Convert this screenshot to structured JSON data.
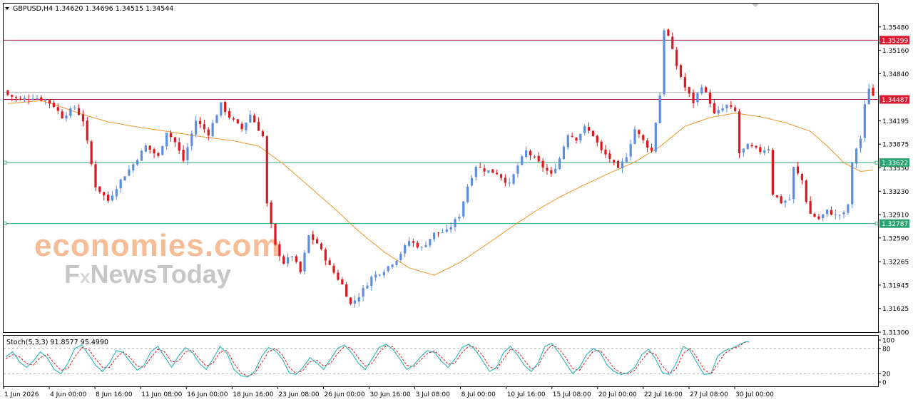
{
  "header": {
    "symbol_line": "GBPUSD,H4  1.34620 1.34696 1.34515 1.34544"
  },
  "watermark": {
    "line1": "economies.com",
    "line2_a": "F",
    "line2_b": "x",
    "line2_c": "NewsToday"
  },
  "colors": {
    "bull": "#5b8de0",
    "bear": "#e0161e",
    "ma": "#f0952a",
    "resistance": "#a51d4a",
    "support": "#2aa370",
    "stoch_main": "#2bb6b6",
    "stoch_signal": "#e0161e",
    "watermark_orange": "#f4b183",
    "watermark_gray": "#bdbdbd"
  },
  "chart_data": [
    {
      "type": "candlestick",
      "title": "GBPUSD,H4",
      "ohlc_last": {
        "open": 1.3462,
        "high": 1.34696,
        "low": 1.34515,
        "close": 1.34544
      },
      "ylim": [
        1.313,
        1.358
      ],
      "y_ticks": [
        "1.35480",
        "1.35160",
        "1.34840",
        "1.34195",
        "1.33875",
        "1.33550",
        "1.33230",
        "1.32910",
        "1.32590",
        "1.32265",
        "1.31945",
        "1.31625",
        "1.31300"
      ],
      "x_ticks": [
        "1 Jun 2026",
        "4 Jun 00:00",
        "8 Jun 16:00",
        "11 Jun 08:00",
        "16 Jun 00:00",
        "18 Jun 16:00",
        "23 Jun 08:00",
        "26 Jun 00:00",
        "30 Jun 16:00",
        "3 Jul 08:00",
        "8 Jul 00:00",
        "10 Jul 16:00",
        "15 Jul 08:00",
        "20 Jul 00:00",
        "22 Jul 16:00",
        "27 Jul 08:00",
        "30 Jul 00:00"
      ],
      "levels": [
        {
          "value": 1.35299,
          "label": "1.35299",
          "kind": "resistance"
        },
        {
          "value": 1.34487,
          "label": "1.34487",
          "kind": "resistance"
        },
        {
          "value": 1.33622,
          "label": "1.33622",
          "kind": "support"
        },
        {
          "value": 1.32787,
          "label": "1.32787",
          "kind": "support"
        }
      ],
      "current_price": 1.34544,
      "price_path": [
        [
          0,
          1.3455
        ],
        [
          3,
          1.3448
        ],
        [
          6,
          1.3452
        ],
        [
          9,
          1.3448
        ],
        [
          11,
          1.344
        ],
        [
          13,
          1.3425
        ],
        [
          16,
          1.3438
        ],
        [
          18,
          1.342
        ],
        [
          21,
          1.333
        ],
        [
          24,
          1.331
        ],
        [
          27,
          1.3338
        ],
        [
          30,
          1.336
        ],
        [
          33,
          1.3385
        ],
        [
          36,
          1.337
        ],
        [
          38,
          1.3405
        ],
        [
          40,
          1.339
        ],
        [
          42,
          1.3365
        ],
        [
          45,
          1.342
        ],
        [
          48,
          1.3402
        ],
        [
          51,
          1.3442
        ],
        [
          53,
          1.3425
        ],
        [
          56,
          1.3408
        ],
        [
          58,
          1.3428
        ],
        [
          61,
          1.3398
        ],
        [
          62,
          1.3305
        ],
        [
          64,
          1.3248
        ],
        [
          66,
          1.3225
        ],
        [
          68,
          1.3235
        ],
        [
          70,
          1.3212
        ],
        [
          72,
          1.3262
        ],
        [
          74,
          1.3252
        ],
        [
          77,
          1.322
        ],
        [
          80,
          1.3195
        ],
        [
          82,
          1.3168
        ],
        [
          84,
          1.318
        ],
        [
          87,
          1.3205
        ],
        [
          90,
          1.3215
        ],
        [
          93,
          1.323
        ],
        [
          96,
          1.3255
        ],
        [
          99,
          1.3245
        ],
        [
          102,
          1.3265
        ],
        [
          105,
          1.3268
        ],
        [
          108,
          1.329
        ],
        [
          110,
          1.333
        ],
        [
          112,
          1.3358
        ],
        [
          114,
          1.3352
        ],
        [
          117,
          1.3348
        ],
        [
          120,
          1.3332
        ],
        [
          122,
          1.3358
        ],
        [
          124,
          1.3378
        ],
        [
          127,
          1.3362
        ],
        [
          130,
          1.3345
        ],
        [
          132,
          1.3368
        ],
        [
          134,
          1.3402
        ],
        [
          136,
          1.3395
        ],
        [
          138,
          1.341
        ],
        [
          140,
          1.34
        ],
        [
          142,
          1.3378
        ],
        [
          144,
          1.3368
        ],
        [
          146,
          1.3352
        ],
        [
          148,
          1.3372
        ],
        [
          150,
          1.3408
        ],
        [
          152,
          1.3392
        ],
        [
          154,
          1.3378
        ],
        [
          155,
          1.3418
        ],
        [
          156,
          1.3455
        ],
        [
          157,
          1.3545
        ],
        [
          158,
          1.3535
        ],
        [
          160,
          1.3495
        ],
        [
          162,
          1.3465
        ],
        [
          164,
          1.3445
        ],
        [
          166,
          1.3468
        ],
        [
          168,
          1.3445
        ],
        [
          169,
          1.3428
        ],
        [
          172,
          1.344
        ],
        [
          174,
          1.3432
        ],
        [
          175,
          1.3375
        ],
        [
          177,
          1.3385
        ],
        [
          180,
          1.3378
        ],
        [
          182,
          1.3382
        ],
        [
          183,
          1.332
        ],
        [
          185,
          1.3308
        ],
        [
          187,
          1.3312
        ],
        [
          188,
          1.3355
        ],
        [
          190,
          1.3338
        ],
        [
          191,
          1.331
        ],
        [
          192,
          1.3292
        ],
        [
          194,
          1.3285
        ],
        [
          196,
          1.3296
        ],
        [
          198,
          1.329
        ],
        [
          200,
          1.3292
        ],
        [
          201,
          1.3305
        ],
        [
          202,
          1.336
        ],
        [
          203,
          1.3382
        ],
        [
          204,
          1.3395
        ],
        [
          205,
          1.344
        ],
        [
          206,
          1.3465
        ],
        [
          207,
          1.3454
        ]
      ],
      "ma_path": [
        [
          0,
          1.3443
        ],
        [
          8,
          1.3447
        ],
        [
          12,
          1.344
        ],
        [
          18,
          1.3428
        ],
        [
          24,
          1.3418
        ],
        [
          30,
          1.3412
        ],
        [
          38,
          1.3405
        ],
        [
          46,
          1.3398
        ],
        [
          54,
          1.3392
        ],
        [
          60,
          1.3385
        ],
        [
          66,
          1.336
        ],
        [
          72,
          1.333
        ],
        [
          78,
          1.33
        ],
        [
          84,
          1.3268
        ],
        [
          90,
          1.324
        ],
        [
          96,
          1.3218
        ],
        [
          102,
          1.3208
        ],
        [
          108,
          1.3225
        ],
        [
          114,
          1.3248
        ],
        [
          120,
          1.3272
        ],
        [
          126,
          1.3295
        ],
        [
          132,
          1.3315
        ],
        [
          138,
          1.3332
        ],
        [
          144,
          1.3348
        ],
        [
          150,
          1.3363
        ],
        [
          156,
          1.3384
        ],
        [
          162,
          1.3412
        ],
        [
          168,
          1.3424
        ],
        [
          174,
          1.343
        ],
        [
          180,
          1.3425
        ],
        [
          186,
          1.3417
        ],
        [
          192,
          1.3405
        ],
        [
          196,
          1.3385
        ],
        [
          200,
          1.3362
        ],
        [
          204,
          1.335
        ],
        [
          207,
          1.3352
        ]
      ]
    },
    {
      "type": "line",
      "title": "Stoch(5,3,3) 91.8577 95.4990",
      "indicator": "Stochastic",
      "params": "5,3,3",
      "main_value": 91.8577,
      "signal_value": 95.499,
      "ylim": [
        0,
        100
      ],
      "y_ticks": [
        "100",
        "80",
        "20",
        "0"
      ],
      "levels": [
        20,
        80
      ],
      "main_path": [
        [
          0,
          60
        ],
        [
          2,
          72
        ],
        [
          4,
          48
        ],
        [
          6,
          35
        ],
        [
          8,
          50
        ],
        [
          10,
          72
        ],
        [
          12,
          58
        ],
        [
          14,
          30
        ],
        [
          16,
          20
        ],
        [
          18,
          45
        ],
        [
          20,
          80
        ],
        [
          22,
          88
        ],
        [
          24,
          65
        ],
        [
          26,
          40
        ],
        [
          28,
          25
        ],
        [
          30,
          45
        ],
        [
          32,
          75
        ],
        [
          34,
          70
        ],
        [
          36,
          48
        ],
        [
          38,
          28
        ],
        [
          40,
          40
        ],
        [
          42,
          72
        ],
        [
          44,
          85
        ],
        [
          46,
          60
        ],
        [
          48,
          35
        ],
        [
          50,
          62
        ],
        [
          52,
          82
        ],
        [
          54,
          70
        ],
        [
          56,
          45
        ],
        [
          58,
          30
        ],
        [
          60,
          55
        ],
        [
          62,
          85
        ],
        [
          64,
          68
        ],
        [
          66,
          30
        ],
        [
          68,
          15
        ],
        [
          70,
          12
        ],
        [
          72,
          25
        ],
        [
          74,
          60
        ],
        [
          76,
          82
        ],
        [
          78,
          75
        ],
        [
          80,
          55
        ],
        [
          82,
          22
        ],
        [
          84,
          18
        ],
        [
          86,
          35
        ],
        [
          88,
          58
        ],
        [
          90,
          45
        ],
        [
          92,
          30
        ],
        [
          94,
          55
        ],
        [
          96,
          80
        ],
        [
          98,
          88
        ],
        [
          100,
          70
        ],
        [
          102,
          45
        ],
        [
          104,
          30
        ],
        [
          106,
          55
        ],
        [
          108,
          82
        ],
        [
          110,
          90
        ],
        [
          112,
          78
        ],
        [
          114,
          55
        ],
        [
          116,
          30
        ],
        [
          118,
          40
        ],
        [
          120,
          60
        ],
        [
          122,
          75
        ],
        [
          124,
          70
        ],
        [
          126,
          50
        ],
        [
          128,
          35
        ],
        [
          130,
          55
        ],
        [
          132,
          82
        ],
        [
          134,
          90
        ],
        [
          136,
          75
        ],
        [
          138,
          50
        ],
        [
          140,
          25
        ],
        [
          142,
          35
        ],
        [
          144,
          70
        ],
        [
          146,
          85
        ],
        [
          148,
          65
        ],
        [
          150,
          40
        ],
        [
          152,
          25
        ],
        [
          154,
          45
        ],
        [
          156,
          85
        ],
        [
          158,
          92
        ],
        [
          160,
          70
        ],
        [
          162,
          45
        ],
        [
          164,
          20
        ],
        [
          166,
          35
        ],
        [
          168,
          65
        ],
        [
          170,
          80
        ],
        [
          172,
          70
        ],
        [
          174,
          40
        ],
        [
          176,
          25
        ],
        [
          178,
          18
        ],
        [
          180,
          22
        ],
        [
          182,
          35
        ],
        [
          184,
          65
        ],
        [
          186,
          78
        ],
        [
          188,
          55
        ],
        [
          190,
          22
        ],
        [
          192,
          18
        ],
        [
          194,
          45
        ],
        [
          196,
          85
        ],
        [
          198,
          75
        ],
        [
          200,
          45
        ],
        [
          202,
          18
        ],
        [
          204,
          20
        ],
        [
          206,
          62
        ],
        [
          208,
          75
        ],
        [
          210,
          80
        ],
        [
          212,
          88
        ],
        [
          214,
          96
        ]
      ],
      "signal_path": [
        [
          0,
          55
        ],
        [
          2,
          65
        ],
        [
          4,
          60
        ],
        [
          6,
          44
        ],
        [
          8,
          40
        ],
        [
          10,
          58
        ],
        [
          12,
          66
        ],
        [
          14,
          45
        ],
        [
          16,
          28
        ],
        [
          18,
          32
        ],
        [
          20,
          60
        ],
        [
          22,
          82
        ],
        [
          24,
          78
        ],
        [
          26,
          55
        ],
        [
          28,
          35
        ],
        [
          30,
          35
        ],
        [
          32,
          58
        ],
        [
          34,
          72
        ],
        [
          36,
          58
        ],
        [
          38,
          38
        ],
        [
          40,
          35
        ],
        [
          42,
          58
        ],
        [
          44,
          78
        ],
        [
          46,
          72
        ],
        [
          48,
          48
        ],
        [
          50,
          50
        ],
        [
          52,
          72
        ],
        [
          54,
          76
        ],
        [
          56,
          55
        ],
        [
          58,
          38
        ],
        [
          60,
          45
        ],
        [
          62,
          72
        ],
        [
          64,
          75
        ],
        [
          66,
          45
        ],
        [
          68,
          22
        ],
        [
          70,
          14
        ],
        [
          72,
          20
        ],
        [
          74,
          45
        ],
        [
          76,
          72
        ],
        [
          78,
          80
        ],
        [
          80,
          65
        ],
        [
          82,
          35
        ],
        [
          84,
          20
        ],
        [
          86,
          28
        ],
        [
          88,
          48
        ],
        [
          90,
          52
        ],
        [
          92,
          38
        ],
        [
          94,
          45
        ],
        [
          96,
          68
        ],
        [
          98,
          85
        ],
        [
          100,
          80
        ],
        [
          102,
          58
        ],
        [
          104,
          38
        ],
        [
          106,
          45
        ],
        [
          108,
          70
        ],
        [
          110,
          86
        ],
        [
          112,
          84
        ],
        [
          114,
          65
        ],
        [
          116,
          40
        ],
        [
          118,
          36
        ],
        [
          120,
          52
        ],
        [
          122,
          68
        ],
        [
          124,
          74
        ],
        [
          126,
          60
        ],
        [
          128,
          42
        ],
        [
          130,
          46
        ],
        [
          132,
          70
        ],
        [
          134,
          86
        ],
        [
          136,
          82
        ],
        [
          138,
          62
        ],
        [
          140,
          36
        ],
        [
          142,
          30
        ],
        [
          144,
          55
        ],
        [
          146,
          78
        ],
        [
          148,
          74
        ],
        [
          150,
          52
        ],
        [
          152,
          32
        ],
        [
          154,
          38
        ],
        [
          156,
          70
        ],
        [
          158,
          88
        ],
        [
          160,
          80
        ],
        [
          162,
          58
        ],
        [
          164,
          32
        ],
        [
          166,
          28
        ],
        [
          168,
          52
        ],
        [
          170,
          74
        ],
        [
          172,
          75
        ],
        [
          174,
          55
        ],
        [
          176,
          32
        ],
        [
          178,
          22
        ],
        [
          180,
          20
        ],
        [
          182,
          28
        ],
        [
          184,
          52
        ],
        [
          186,
          72
        ],
        [
          188,
          66
        ],
        [
          190,
          38
        ],
        [
          192,
          20
        ],
        [
          194,
          32
        ],
        [
          196,
          68
        ],
        [
          198,
          80
        ],
        [
          200,
          58
        ],
        [
          202,
          30
        ],
        [
          204,
          18
        ],
        [
          206,
          45
        ],
        [
          208,
          68
        ],
        [
          210,
          78
        ],
        [
          212,
          85
        ],
        [
          214,
          95
        ]
      ]
    }
  ]
}
